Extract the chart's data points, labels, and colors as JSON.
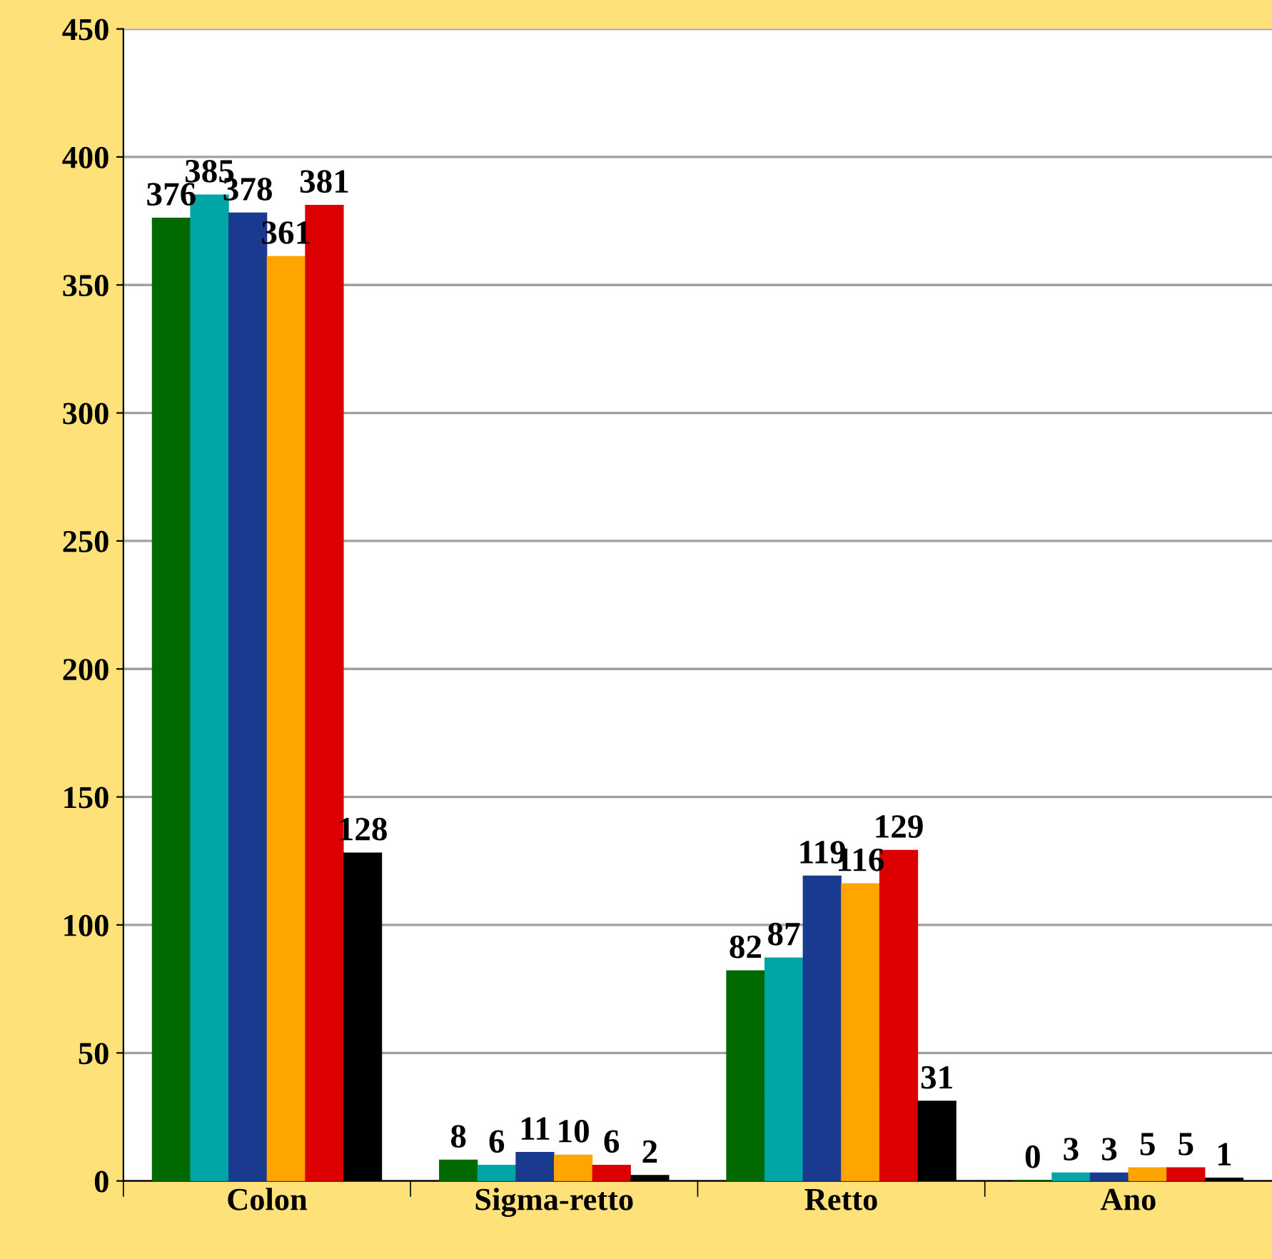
{
  "chart_data": {
    "type": "bar",
    "categories": [
      "Colon",
      "Sigma-retto",
      "Retto",
      "Ano"
    ],
    "series": [
      {
        "color": "#006a00",
        "values": [
          376,
          8,
          82,
          0
        ]
      },
      {
        "color": "#00a5a5",
        "values": [
          385,
          6,
          87,
          3
        ]
      },
      {
        "color": "#1a3a8f",
        "values": [
          378,
          11,
          119,
          3
        ]
      },
      {
        "color": "#ffa500",
        "values": [
          361,
          10,
          116,
          5
        ]
      },
      {
        "color": "#dd0000",
        "values": [
          381,
          6,
          129,
          5
        ]
      },
      {
        "color": "#000000",
        "values": [
          128,
          2,
          31,
          1
        ]
      }
    ],
    "ylim": [
      0,
      450
    ],
    "yticks": [
      0,
      50,
      100,
      150,
      200,
      250,
      300,
      350,
      400,
      450
    ],
    "grid": "y",
    "data_labels": true,
    "legend": false
  }
}
